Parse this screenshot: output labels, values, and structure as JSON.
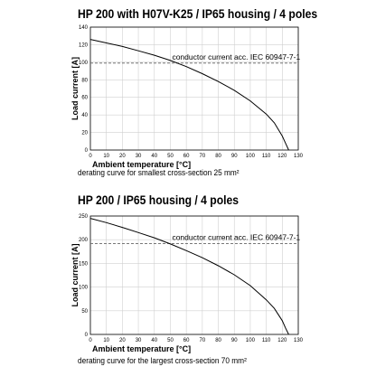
{
  "chart_data": [
    {
      "type": "line",
      "title": "HP 200 with H07V-K25 / IP65 housing / 4 poles",
      "xlabel": "Ambient temperature [°C]",
      "ylabel": "Load current [A]",
      "xlim": [
        0,
        130
      ],
      "ylim": [
        0,
        140
      ],
      "x_ticks": [
        "0",
        "10",
        "20",
        "30",
        "40",
        "50",
        "60",
        "70",
        "80",
        "90",
        "100",
        "110",
        "120",
        "130"
      ],
      "y_ticks": [
        "0",
        "20",
        "40",
        "60",
        "80",
        "100",
        "120",
        "140"
      ],
      "grid": true,
      "series": [
        {
          "x": [
            0,
            10,
            20,
            30,
            40,
            50,
            60,
            70,
            80,
            90,
            100,
            110,
            115,
            120,
            122,
            124
          ],
          "y": [
            126,
            122,
            118,
            113,
            108,
            102,
            95,
            87,
            78,
            68,
            56,
            41,
            31,
            16,
            8,
            0
          ]
        }
      ],
      "reference_line": {
        "y": 99,
        "label": "conductor current acc. IEC 60947-7-1"
      },
      "caption": "derating curve for smallest cross-section 25 mm²"
    },
    {
      "type": "line",
      "title": "HP 200 / IP65 housing / 4 poles",
      "xlabel": "Ambient temperature [°C]",
      "ylabel": "Load current [A]",
      "xlim": [
        0,
        130
      ],
      "ylim": [
        0,
        250
      ],
      "x_ticks": [
        "0",
        "10",
        "20",
        "30",
        "40",
        "50",
        "60",
        "70",
        "80",
        "90",
        "100",
        "110",
        "120",
        "130"
      ],
      "y_ticks": [
        "0",
        "50",
        "100",
        "150",
        "200",
        "250"
      ],
      "grid": true,
      "series": [
        {
          "x": [
            0,
            10,
            20,
            30,
            40,
            50,
            60,
            70,
            80,
            90,
            100,
            110,
            115,
            120,
            122,
            124
          ],
          "y": [
            245,
            236,
            226,
            215,
            204,
            191,
            177,
            162,
            145,
            126,
            103,
            73,
            55,
            29,
            14,
            0
          ]
        }
      ],
      "reference_line": {
        "y": 192,
        "label": "conductor current acc. IEC 60947-7-1"
      },
      "caption": "derating curve for the largest cross-section 70 mm²"
    }
  ]
}
